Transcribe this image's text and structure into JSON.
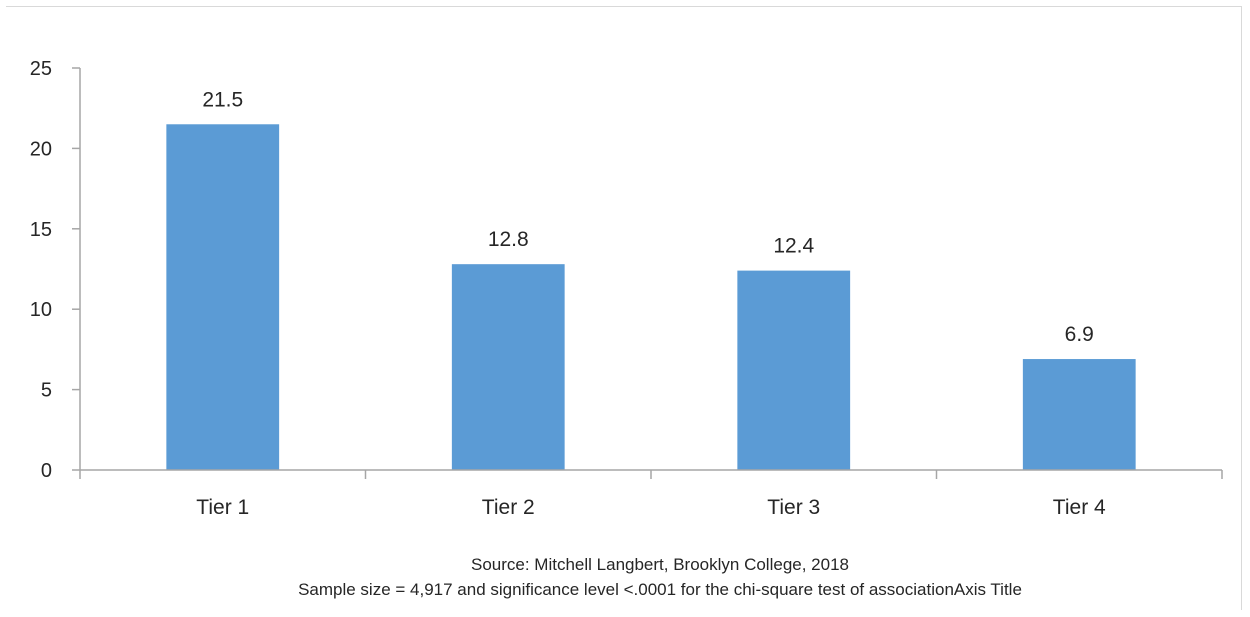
{
  "chart_data": {
    "type": "bar",
    "categories": [
      "Tier 1",
      "Tier 2",
      "Tier 3",
      "Tier 4"
    ],
    "values": [
      21.5,
      12.8,
      12.4,
      6.9
    ],
    "data_labels": [
      "21.5",
      "12.8",
      "12.4",
      "6.9"
    ],
    "title": "",
    "xlabel": "",
    "ylabel": "",
    "ylim": [
      0,
      25
    ],
    "yticks": [
      0,
      5,
      10,
      15,
      20,
      25
    ],
    "grid": false,
    "legend": "none",
    "bar_color": "#5b9bd5",
    "notes": [
      "Source: Mitchell Langbert, Brooklyn College, 2018",
      "Sample size = 4,917 and significance level <.0001 for the chi-square test of associationAxis Title"
    ]
  }
}
